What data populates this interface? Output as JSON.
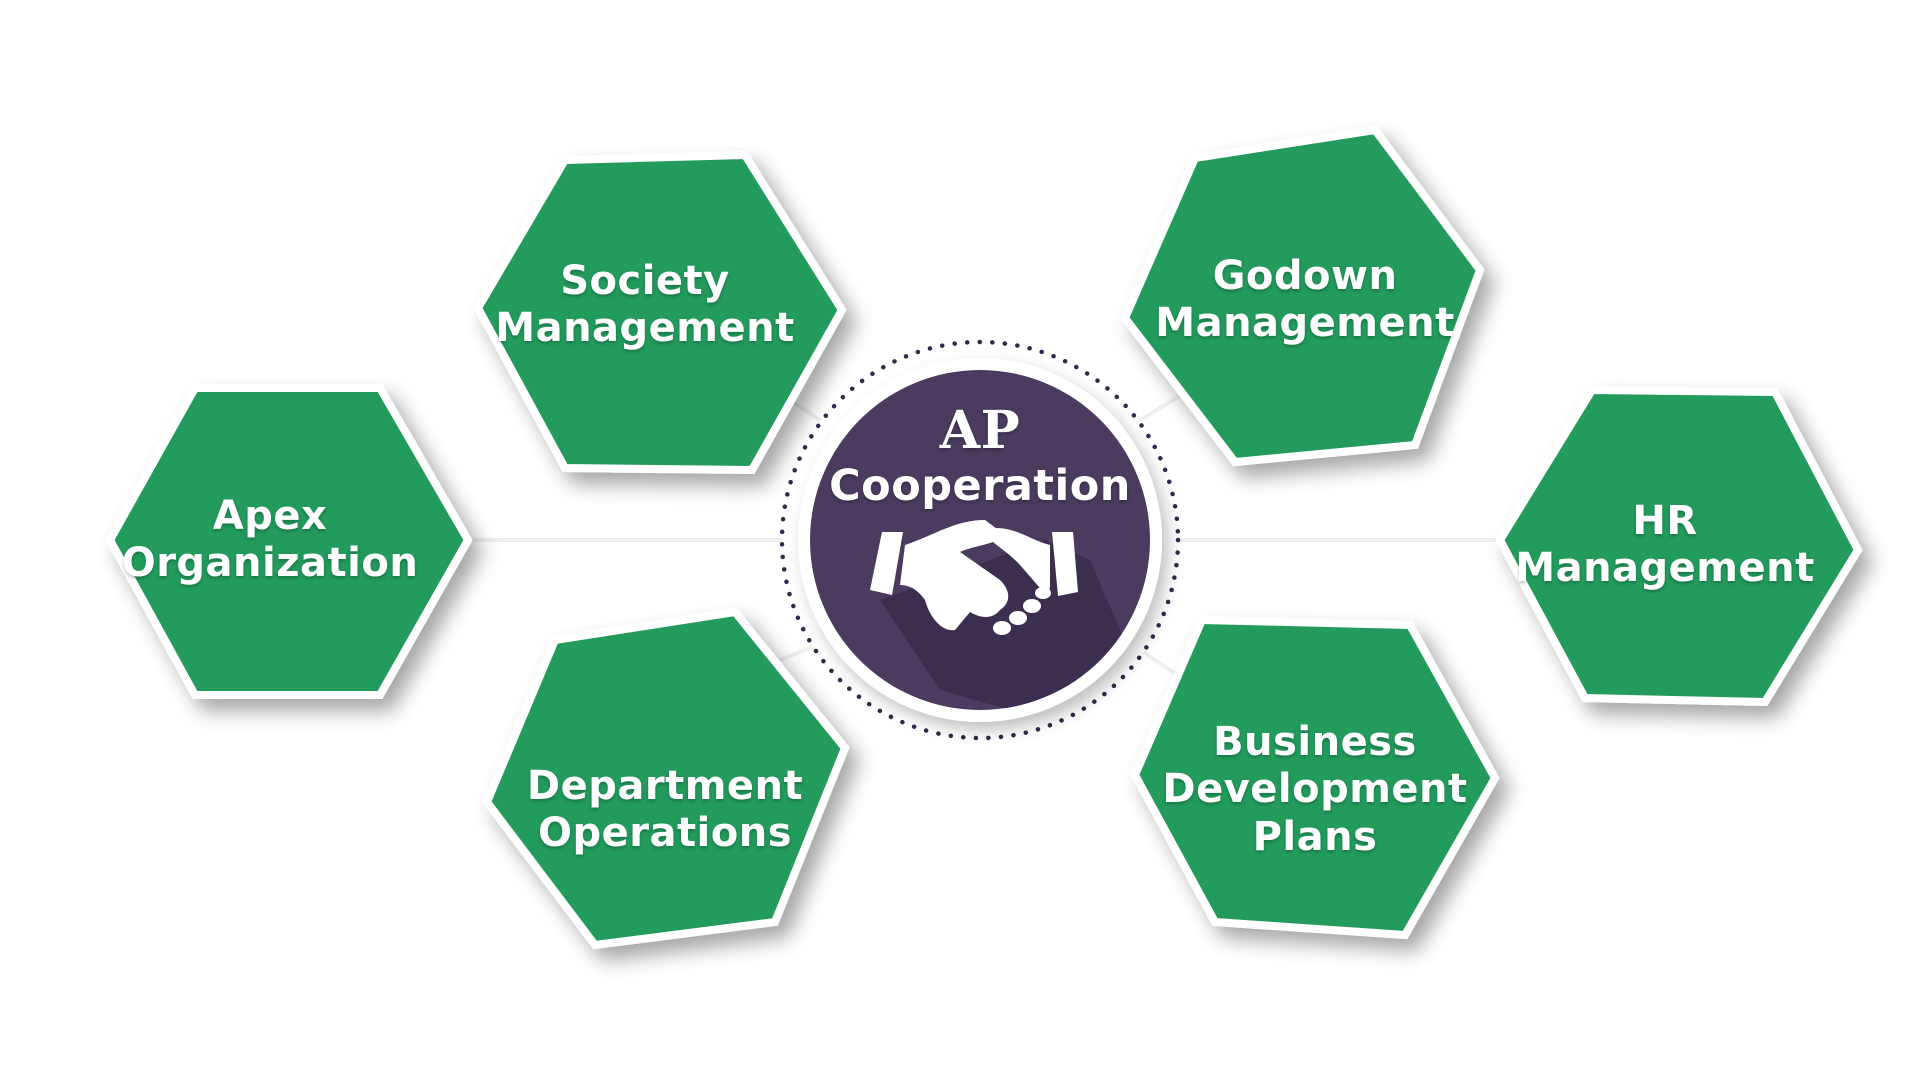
{
  "center": {
    "title_line1": "AP",
    "title_line2": "Cooperation",
    "icon": "handshake-icon"
  },
  "nodes": [
    {
      "id": "apex",
      "lines": [
        "Apex",
        "Organization"
      ]
    },
    {
      "id": "society",
      "lines": [
        "Society",
        "Management"
      ]
    },
    {
      "id": "department",
      "lines": [
        "Department",
        "Operations"
      ]
    },
    {
      "id": "godown",
      "lines": [
        "Godown",
        "Management"
      ]
    },
    {
      "id": "hr",
      "lines": [
        "HR",
        "Management"
      ]
    },
    {
      "id": "business",
      "lines": [
        "Business",
        "Development",
        "Plans"
      ]
    }
  ],
  "colors": {
    "hexagon_fill": "#249b5c",
    "hexagon_border": "#ffffff",
    "center_fill": "#4a3b5f",
    "center_dots": "#2f2a4a",
    "connector": "#eeeeee"
  }
}
